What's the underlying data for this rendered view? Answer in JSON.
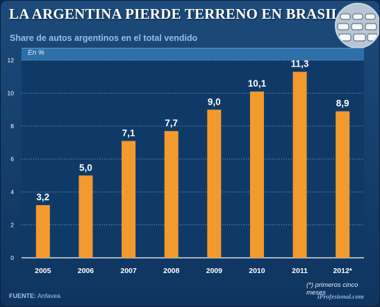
{
  "header": {
    "title": "LA ARGENTINA PIERDE TERRENO EN BRASIL",
    "subtitle": "Share de autos argentinos en el total vendido",
    "unit": "En %"
  },
  "footer": {
    "source_label": "FUENTE:",
    "source_value": "Anfavea",
    "note": "(*) primeros cinco meses",
    "brand": "iProfesional.com"
  },
  "colors": {
    "bar": "#f39a2e",
    "plot_bg": "#0f3a68",
    "grid": "#9fc2e3",
    "text": "#ffffff"
  },
  "chart_data": {
    "type": "bar",
    "categories": [
      "2005",
      "2006",
      "2007",
      "2008",
      "2009",
      "2010",
      "2011",
      "2012*"
    ],
    "values": [
      3.2,
      5.0,
      7.1,
      7.7,
      9.0,
      10.1,
      11.3,
      8.9
    ],
    "value_labels": [
      "3,2",
      "5,0",
      "7,1",
      "7,7",
      "9,0",
      "10,1",
      "11,3",
      "8,9"
    ],
    "yticks": [
      0,
      2,
      4,
      6,
      8,
      10,
      12
    ],
    "ylim": [
      0,
      12
    ],
    "ylabel": "En %",
    "grid": true
  }
}
